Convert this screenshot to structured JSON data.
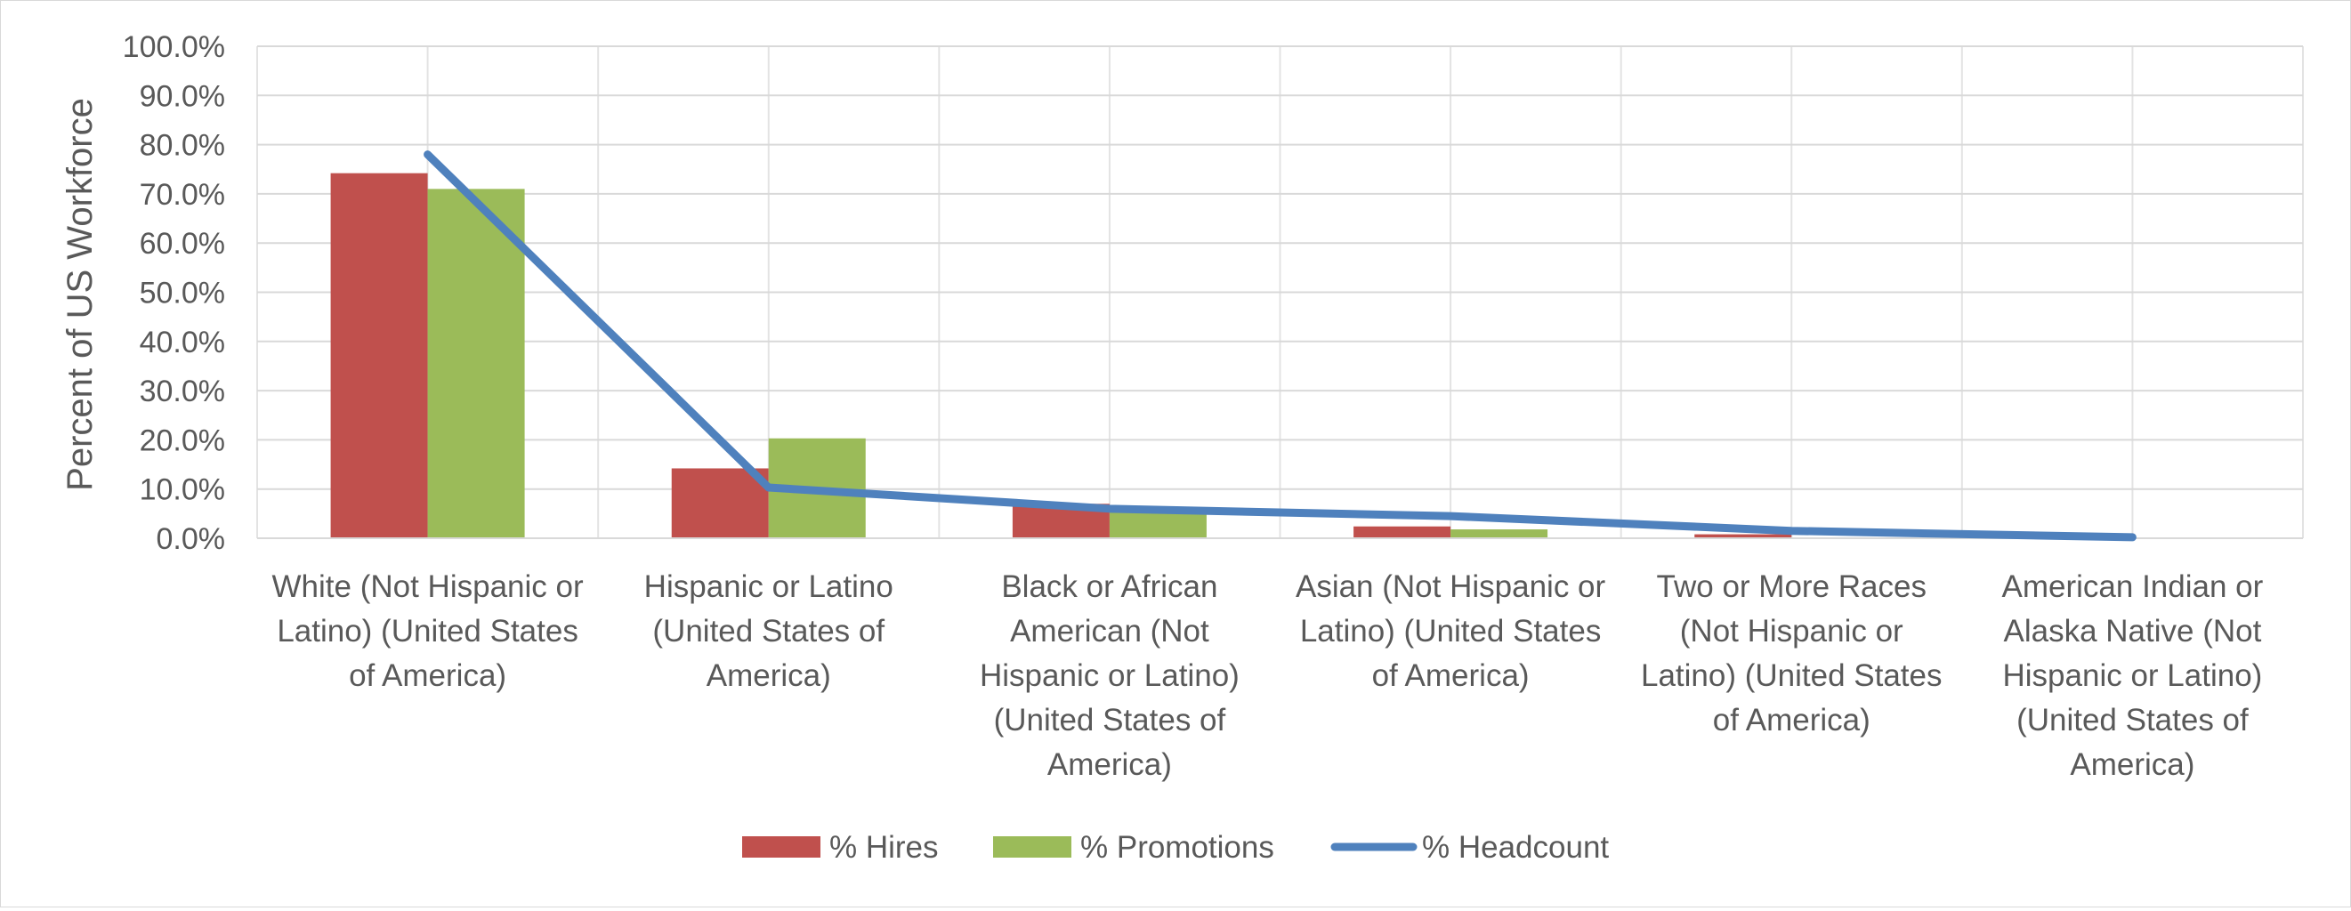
{
  "chart_data": {
    "type": "bar",
    "title": "",
    "xlabel": "",
    "ylabel": "Percent of US Workforce",
    "ylim": [
      0,
      100
    ],
    "y_ticks": [
      "0.0%",
      "10.0%",
      "20.0%",
      "30.0%",
      "40.0%",
      "50.0%",
      "60.0%",
      "70.0%",
      "80.0%",
      "90.0%",
      "100.0%"
    ],
    "grid": true,
    "legend_position": "bottom",
    "categories": [
      [
        "White (Not Hispanic or",
        "Latino) (United States",
        "of America)"
      ],
      [
        "Hispanic or Latino",
        "(United States of",
        "America)"
      ],
      [
        "Black or African",
        "American (Not",
        "Hispanic or Latino)",
        "(United States of",
        "America)"
      ],
      [
        "Asian (Not Hispanic or",
        "Latino) (United States",
        "of America)"
      ],
      [
        "Two or More Races",
        "(Not Hispanic or",
        "Latino) (United States",
        "of America)"
      ],
      [
        "American Indian or",
        "Alaska Native (Not",
        "Hispanic or Latino)",
        "(United States of",
        "America)"
      ]
    ],
    "series": [
      {
        "name": "% Hires",
        "kind": "bar",
        "color": "#c0504d",
        "values": [
          74.2,
          14.2,
          7.0,
          2.4,
          0.8,
          0.0
        ]
      },
      {
        "name": "% Promotions",
        "kind": "bar",
        "color": "#9bbb59",
        "values": [
          71.0,
          20.3,
          6.2,
          1.8,
          0.0,
          0.0
        ]
      },
      {
        "name": "% Headcount",
        "kind": "line",
        "color": "#4f81bd",
        "values": [
          78.0,
          10.3,
          6.0,
          4.5,
          1.5,
          0.2
        ]
      }
    ]
  }
}
